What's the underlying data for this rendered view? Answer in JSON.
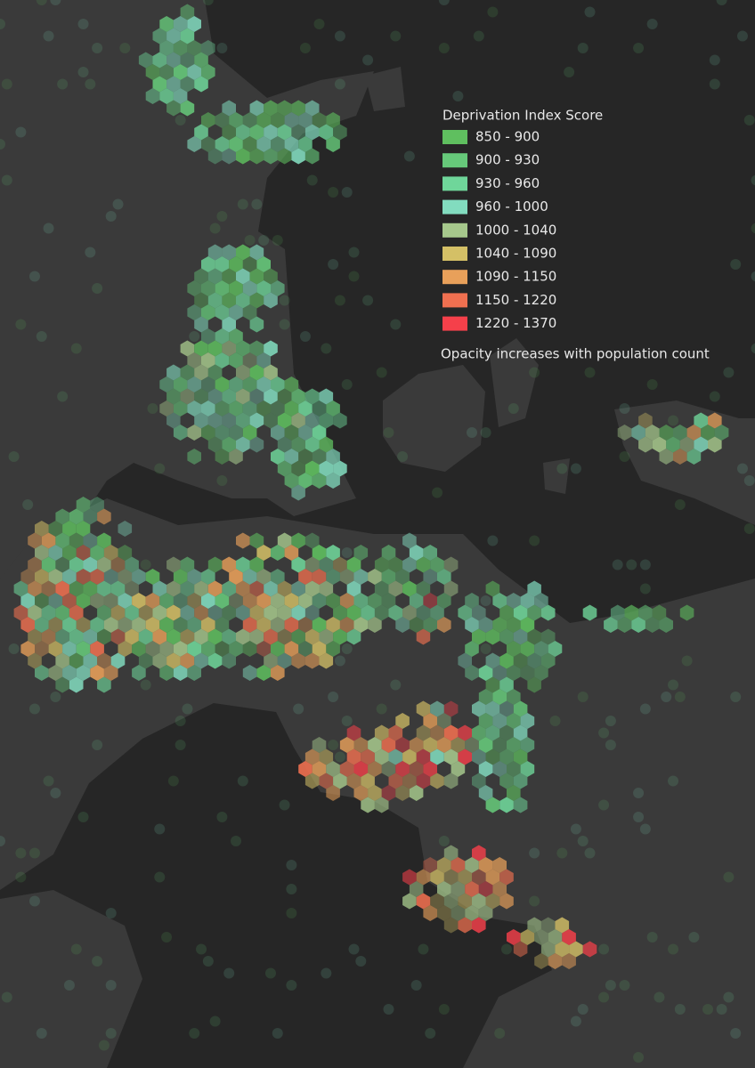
{
  "legend": {
    "title": "Deprivation Index Score",
    "entries": [
      {
        "label": "850 - 900",
        "color": "#5fbf5f"
      },
      {
        "label": "900 - 930",
        "color": "#66c97a"
      },
      {
        "label": "930 - 960",
        "color": "#6fd69a"
      },
      {
        "label": "960 - 1000",
        "color": "#82dcbf"
      },
      {
        "label": "1000 - 1040",
        "color": "#a6c88c"
      },
      {
        "label": "1040 - 1090",
        "color": "#d4c066"
      },
      {
        "label": "1090 - 1150",
        "color": "#e8a05a"
      },
      {
        "label": "1150 - 1220",
        "color": "#f07050"
      },
      {
        "label": "1220 - 1370",
        "color": "#f5404a"
      }
    ],
    "note": "Opacity increases with population count"
  }
}
